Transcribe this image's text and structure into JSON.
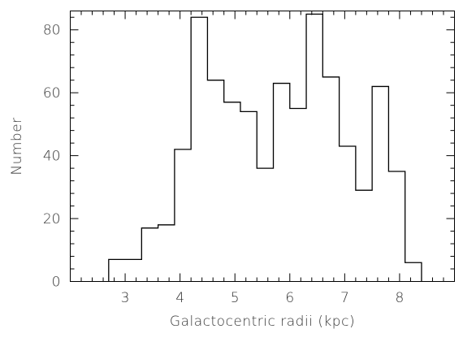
{
  "chart_data": {
    "type": "histogram",
    "title": "",
    "xlabel": "Galactocentric radii (kpc)",
    "ylabel": "Number",
    "xlim": [
      2.0,
      9.0
    ],
    "ylim": [
      0,
      86
    ],
    "x_ticks": [
      3,
      4,
      5,
      6,
      7,
      8
    ],
    "x_tick_labels": [
      "3",
      "4",
      "5",
      "6",
      "7",
      "8"
    ],
    "x_minor_step": 0.2,
    "y_ticks": [
      0,
      20,
      40,
      60,
      80
    ],
    "y_tick_labels": [
      "0",
      "20",
      "40",
      "60",
      "80"
    ],
    "y_minor_step": 4,
    "bin_edges": [
      2.7,
      3.3,
      3.6,
      3.9,
      4.2,
      4.5,
      4.8,
      5.1,
      5.4,
      5.7,
      6.0,
      6.3,
      6.6,
      6.9,
      7.2,
      7.5,
      7.8,
      8.1,
      8.4
    ],
    "counts": [
      7,
      17,
      18,
      42,
      84,
      64,
      57,
      54,
      36,
      63,
      55,
      85,
      65,
      43,
      29,
      62,
      35,
      6
    ],
    "grid": false,
    "legend": "none"
  }
}
